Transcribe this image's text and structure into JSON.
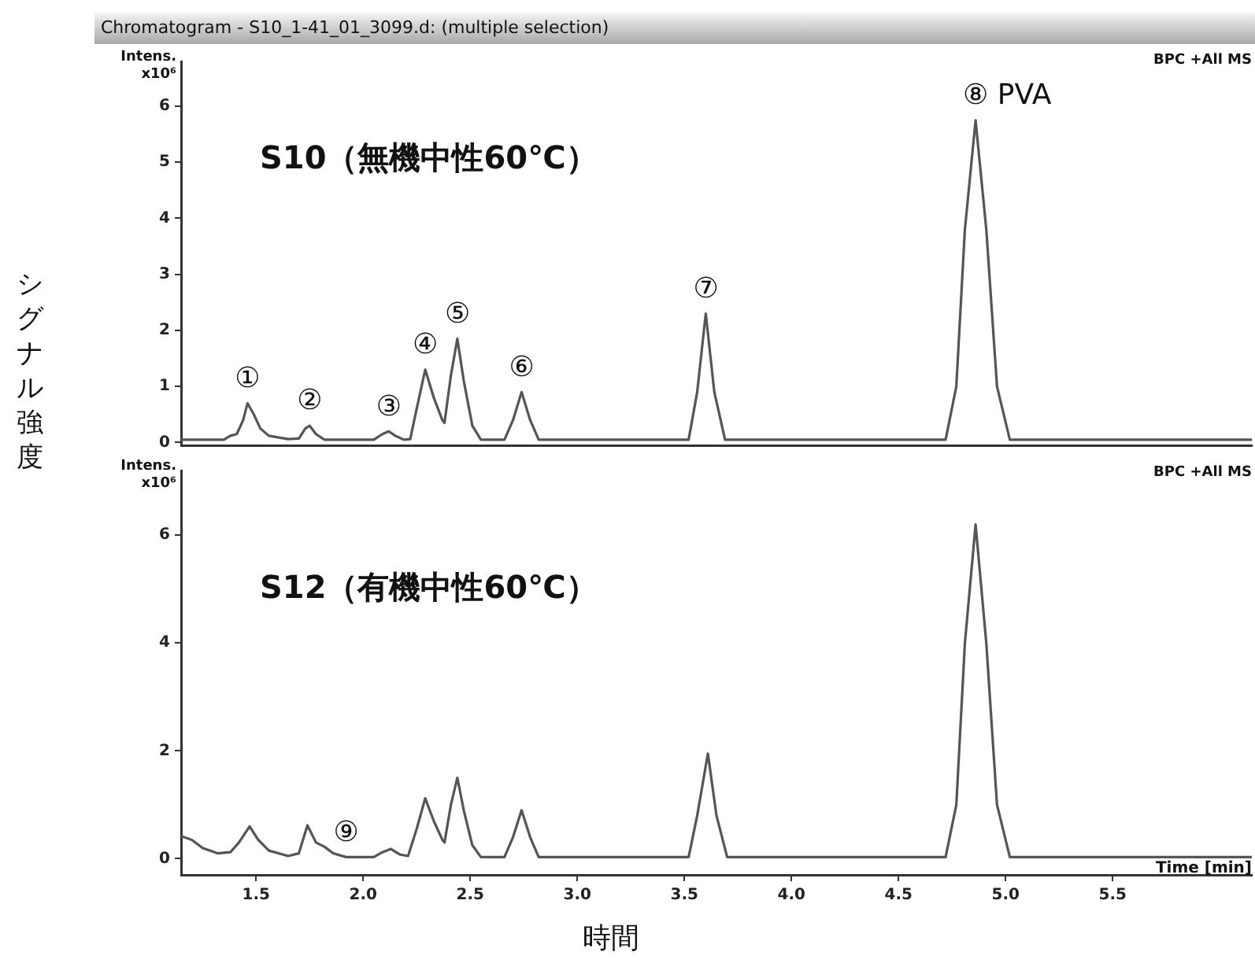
{
  "chart_data": [
    {
      "type": "line",
      "title": "Chromatogram - S10_1-41_01_3099.d: (multiple selection)",
      "ylabel": "シグナル強度",
      "xlim": [
        1.15,
        6.15
      ],
      "ylim": [
        -0.05,
        6.8
      ],
      "yticks": [
        0,
        1,
        2,
        3,
        4,
        5,
        6
      ],
      "tick_labels": "y",
      "grid": false,
      "x": [
        1.15,
        1.35,
        1.38,
        1.41,
        1.44,
        1.46,
        1.49,
        1.52,
        1.56,
        1.65,
        1.7,
        1.73,
        1.75,
        1.78,
        1.82,
        2.05,
        2.09,
        2.12,
        2.15,
        2.19,
        2.22,
        2.25,
        2.29,
        2.33,
        2.37,
        2.38,
        2.41,
        2.44,
        2.47,
        2.51,
        2.55,
        2.66,
        2.7,
        2.74,
        2.78,
        2.82,
        3.52,
        3.56,
        3.6,
        3.64,
        3.69,
        4.72,
        4.77,
        4.81,
        4.86,
        4.91,
        4.96,
        5.02,
        6.15
      ],
      "series": [
        {
          "color": "#555555",
          "values": [
            0.05,
            0.05,
            0.12,
            0.15,
            0.4,
            0.7,
            0.5,
            0.25,
            0.12,
            0.06,
            0.07,
            0.25,
            0.3,
            0.15,
            0.05,
            0.05,
            0.15,
            0.2,
            0.12,
            0.05,
            0.06,
            0.6,
            1.3,
            0.8,
            0.4,
            0.35,
            1.2,
            1.85,
            1.1,
            0.3,
            0.05,
            0.05,
            0.4,
            0.9,
            0.4,
            0.05,
            0.05,
            0.9,
            2.3,
            0.9,
            0.05,
            0.05,
            1.0,
            3.8,
            5.75,
            3.8,
            1.0,
            0.05,
            0.05
          ]
        }
      ],
      "annotations": [
        "S10（無機中性60℃）",
        "Intens.",
        "x10⁶",
        "BPC +All MS",
        {
          "text": "①",
          "x": 1.46,
          "y": 0.7
        },
        {
          "text": "②",
          "x": 1.75,
          "y": 0.3
        },
        {
          "text": "③",
          "x": 2.12,
          "y": 0.2
        },
        {
          "text": "④",
          "x": 2.29,
          "y": 1.3
        },
        {
          "text": "⑤",
          "x": 2.44,
          "y": 1.85
        },
        {
          "text": "⑥",
          "x": 2.74,
          "y": 0.9
        },
        {
          "text": "⑦",
          "x": 3.6,
          "y": 2.3
        },
        {
          "text": "⑧ PVA",
          "x": 4.86,
          "y": 5.75
        }
      ]
    },
    {
      "type": "line",
      "xlabel": "時間",
      "xlim": [
        1.15,
        6.15
      ],
      "ylim": [
        -0.3,
        7.2
      ],
      "xticks": [
        1.5,
        {
          "value": 2,
          "label": "2.0"
        },
        2.5,
        {
          "value": 3,
          "label": "3.0"
        },
        3.5,
        {
          "value": 4,
          "label": "4.0"
        },
        4.5,
        {
          "value": 5,
          "label": "5.0"
        },
        5.5
      ],
      "yticks": [
        0,
        2,
        4,
        6
      ],
      "grid": false,
      "x": [
        1.15,
        1.2,
        1.25,
        1.32,
        1.38,
        1.42,
        1.47,
        1.51,
        1.56,
        1.65,
        1.7,
        1.74,
        1.78,
        1.82,
        1.86,
        1.92,
        2.05,
        2.09,
        2.13,
        2.17,
        2.21,
        2.25,
        2.29,
        2.33,
        2.37,
        2.38,
        2.41,
        2.44,
        2.47,
        2.51,
        2.55,
        2.66,
        2.7,
        2.74,
        2.78,
        2.82,
        3.52,
        3.56,
        3.61,
        3.65,
        3.7,
        4.72,
        4.77,
        4.81,
        4.86,
        4.91,
        4.96,
        5.02,
        6.15
      ],
      "series": [
        {
          "color": "#555555",
          "values": [
            0.42,
            0.35,
            0.2,
            0.1,
            0.12,
            0.3,
            0.6,
            0.35,
            0.15,
            0.05,
            0.1,
            0.62,
            0.3,
            0.22,
            0.1,
            0.03,
            0.03,
            0.12,
            0.18,
            0.08,
            0.05,
            0.55,
            1.12,
            0.7,
            0.35,
            0.3,
            1.0,
            1.5,
            0.9,
            0.25,
            0.03,
            0.03,
            0.4,
            0.9,
            0.4,
            0.03,
            0.03,
            0.8,
            1.95,
            0.8,
            0.03,
            0.03,
            1.0,
            4.0,
            6.2,
            4.0,
            1.0,
            0.03,
            0.03
          ]
        }
      ],
      "annotations": [
        "S12（有機中性60℃）",
        "Intens.",
        "x10⁶",
        "BPC +All MS",
        "Time [min]",
        {
          "text": "⑨",
          "x": 1.92,
          "y": 0.03
        }
      ]
    }
  ]
}
